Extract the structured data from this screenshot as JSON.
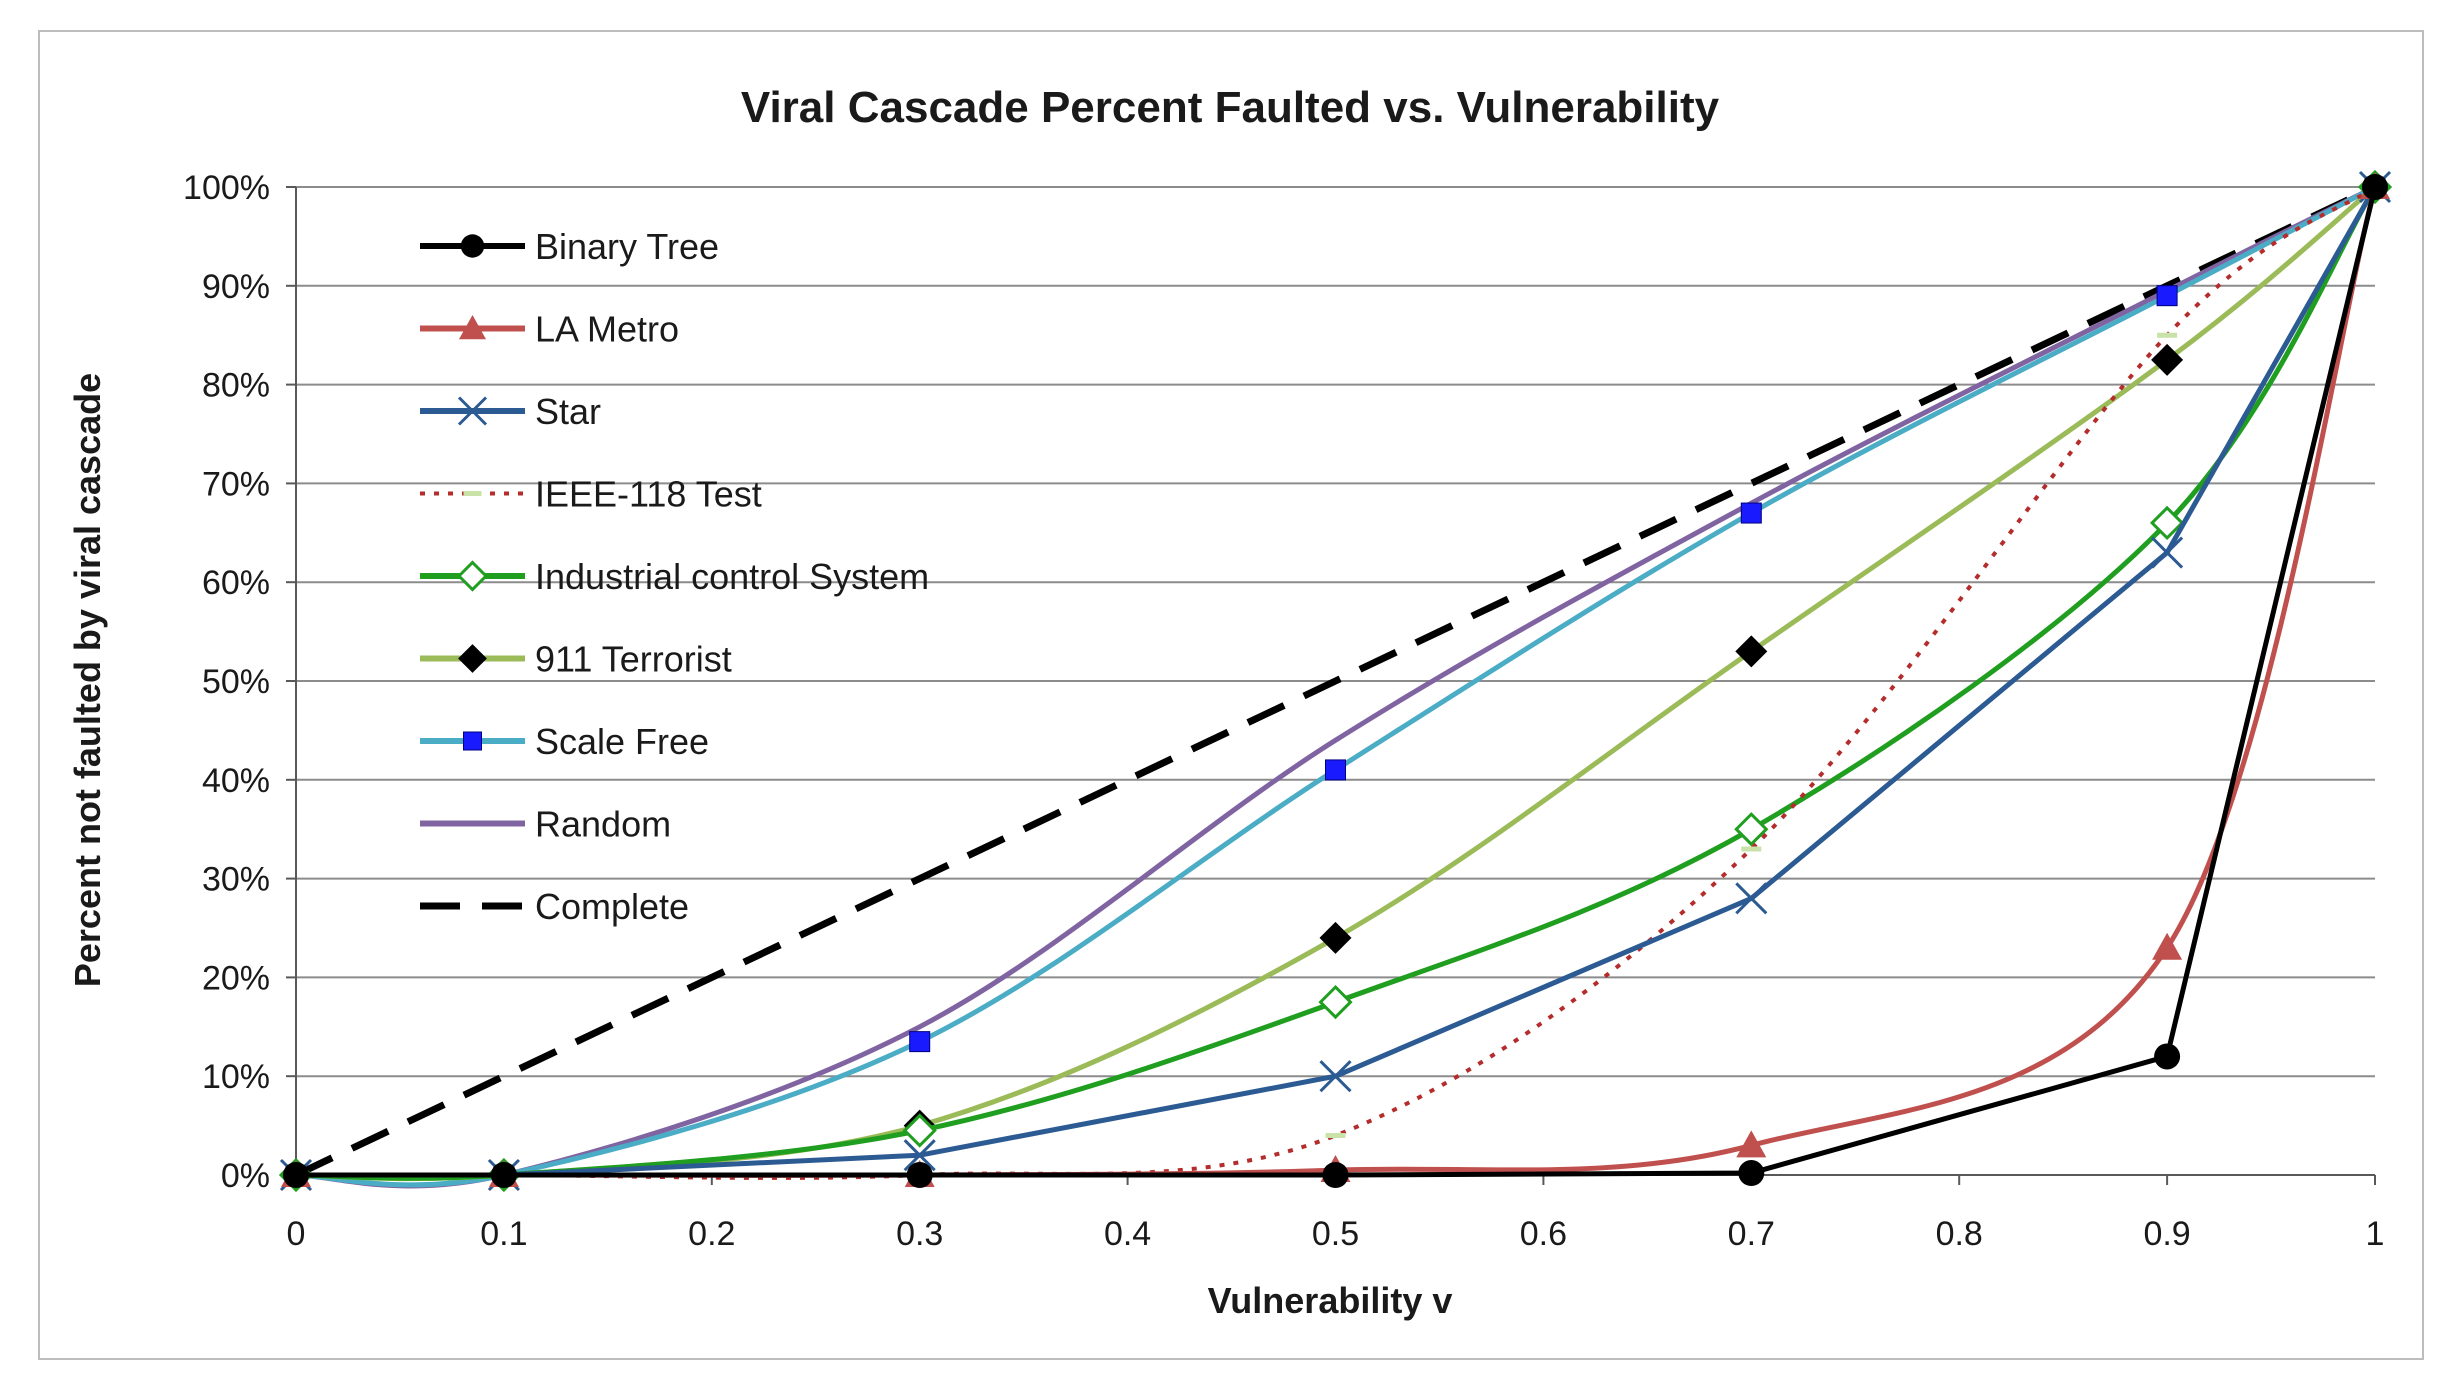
{
  "chart_data": {
    "type": "line",
    "title": "Viral Cascade Percent Faulted vs. Vulnerability",
    "xlabel": "Vulnerability v",
    "ylabel": "Percent not faulted by viral cascade",
    "xlim": [
      0,
      1
    ],
    "ylim": [
      0,
      100
    ],
    "x_ticks": [
      "0",
      "0.1",
      "0.2",
      "0.3",
      "0.4",
      "0.5",
      "0.6",
      "0.7",
      "0.8",
      "0.9",
      "1"
    ],
    "y_ticks": [
      "0%",
      "10%",
      "20%",
      "30%",
      "40%",
      "50%",
      "60%",
      "70%",
      "80%",
      "90%",
      "100%"
    ],
    "grid": "horizontal",
    "legend_position": "top-left",
    "series": [
      {
        "name": "Binary Tree",
        "color": "#000000",
        "dash": "solid",
        "marker": "circle",
        "smooth": false,
        "x": [
          0,
          0.1,
          0.3,
          0.5,
          0.7,
          0.9,
          1.0
        ],
        "y": [
          0,
          0,
          0,
          0,
          0.2,
          12,
          100
        ]
      },
      {
        "name": "LA Metro",
        "color": "#c0504d",
        "dash": "solid",
        "marker": "triangle",
        "smooth": true,
        "x": [
          0,
          0.1,
          0.3,
          0.5,
          0.7,
          0.9,
          1.0
        ],
        "y": [
          0,
          0,
          0,
          0.5,
          3,
          23,
          100
        ]
      },
      {
        "name": "Star",
        "color": "#2c5a92",
        "dash": "solid",
        "marker": "x",
        "smooth": false,
        "x": [
          0,
          0.1,
          0.3,
          0.5,
          0.7,
          0.9,
          1.0
        ],
        "y": [
          0,
          0,
          2,
          10,
          28,
          63,
          100
        ]
      },
      {
        "name": "IEEE-118 Test",
        "color": "#b52c2c",
        "dash": "dotted",
        "marker": "dash",
        "smooth": true,
        "x": [
          0,
          0.1,
          0.3,
          0.5,
          0.7,
          0.9,
          1.0
        ],
        "y": [
          0,
          0,
          0,
          4,
          33,
          85,
          100
        ]
      },
      {
        "name": "Industrial control System",
        "color": "#1f9e1f",
        "dash": "solid",
        "marker": "diamond-open",
        "smooth": true,
        "x": [
          0,
          0.1,
          0.3,
          0.5,
          0.7,
          0.9,
          1.0
        ],
        "y": [
          0,
          0,
          4.5,
          17.5,
          35,
          66,
          100
        ]
      },
      {
        "name": "911 Terrorist",
        "color": "#9bbb59",
        "dash": "solid",
        "marker": "diamond",
        "smooth": true,
        "x": [
          0,
          0.1,
          0.3,
          0.5,
          0.7,
          0.9,
          1.0
        ],
        "y": [
          0,
          0,
          5,
          24,
          53,
          82.5,
          100
        ]
      },
      {
        "name": "Scale Free",
        "color": "#4bacc6",
        "dash": "solid",
        "marker": "square",
        "smooth": true,
        "x": [
          0,
          0.1,
          0.3,
          0.5,
          0.7,
          0.9,
          1.0
        ],
        "y": [
          0,
          0,
          13.5,
          41,
          67,
          89,
          100
        ]
      },
      {
        "name": "Random",
        "color": "#8064a2",
        "dash": "solid",
        "marker": "none",
        "smooth": true,
        "x": [
          0,
          0.1,
          0.3,
          0.5,
          0.7,
          0.9,
          1.0
        ],
        "y": [
          0,
          0,
          15,
          44,
          68,
          89.5,
          100
        ]
      },
      {
        "name": "Complete",
        "color": "#000000",
        "dash": "dashed",
        "marker": "none",
        "smooth": false,
        "x": [
          0,
          0.1,
          0.3,
          0.5,
          0.7,
          0.9,
          1.0
        ],
        "y": [
          0,
          10,
          30,
          50,
          70,
          90,
          100
        ]
      }
    ]
  }
}
